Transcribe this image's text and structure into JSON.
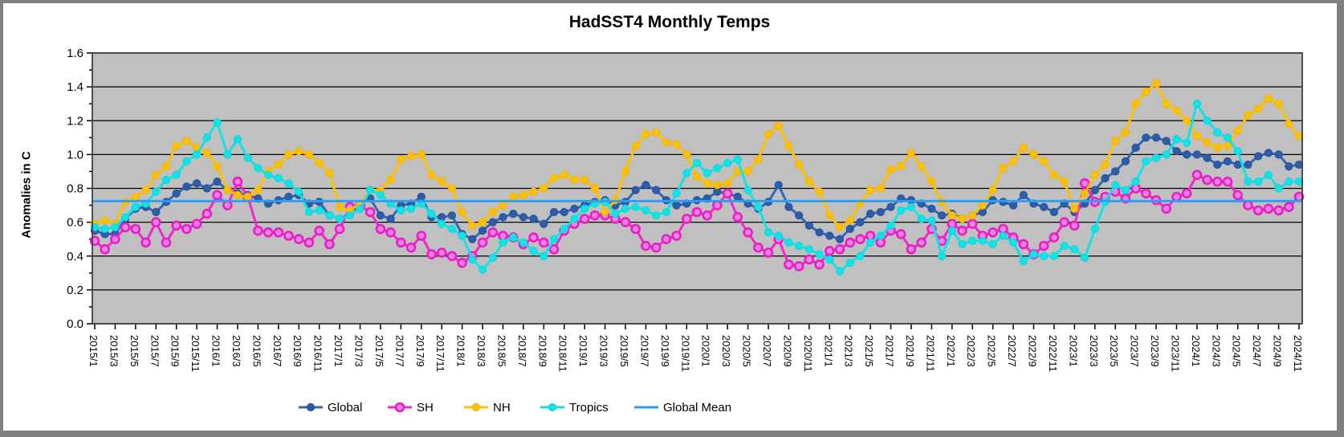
{
  "window_title": "HadSST4 Monthly Temps",
  "chart_data": {
    "type": "line",
    "title": "HadSST4 Monthly Temps",
    "xlabel": "",
    "ylabel": "Anomalies in C",
    "ylim": [
      0.0,
      1.6
    ],
    "ytick_step": 0.2,
    "ytick_labels": [
      "0.0",
      "0.2",
      "0.4",
      "0.6",
      "0.8",
      "1.0",
      "1.2",
      "1.4",
      "1.6"
    ],
    "grid": "horizontal",
    "plot_bg_color": "#c0c0c0",
    "legend_position": "bottom",
    "x_tick_every": 2,
    "months": [
      "2015/1",
      "2015/2",
      "2015/3",
      "2015/4",
      "2015/5",
      "2015/6",
      "2015/7",
      "2015/8",
      "2015/9",
      "2015/10",
      "2015/11",
      "2015/12",
      "2016/1",
      "2016/2",
      "2016/3",
      "2016/4",
      "2016/5",
      "2016/6",
      "2016/7",
      "2016/8",
      "2016/9",
      "2016/10",
      "2016/11",
      "2016/12",
      "2017/1",
      "2017/2",
      "2017/3",
      "2017/4",
      "2017/5",
      "2017/6",
      "2017/7",
      "2017/8",
      "2017/9",
      "2017/10",
      "2017/11",
      "2017/12",
      "2018/1",
      "2018/2",
      "2018/3",
      "2018/4",
      "2018/5",
      "2018/6",
      "2018/7",
      "2018/8",
      "2018/9",
      "2018/10",
      "2018/11",
      "2018/12",
      "2019/1",
      "2019/2",
      "2019/3",
      "2019/4",
      "2019/5",
      "2019/6",
      "2019/7",
      "2019/8",
      "2019/9",
      "2019/10",
      "2019/11",
      "2019/12",
      "2020/1",
      "2020/2",
      "2020/3",
      "2020/4",
      "2020/5",
      "2020/6",
      "2020/7",
      "2020/8",
      "2020/9",
      "2020/10",
      "2020/11",
      "2020/12",
      "2021/1",
      "2021/2",
      "2021/3",
      "2021/4",
      "2021/5",
      "2021/6",
      "2021/7",
      "2021/8",
      "2021/9",
      "2021/10",
      "2021/11",
      "2021/12",
      "2022/1",
      "2022/2",
      "2022/3",
      "2022/4",
      "2022/5",
      "2022/6",
      "2022/7",
      "2022/8",
      "2022/9",
      "2022/10",
      "2022/11",
      "2022/12",
      "2023/1",
      "2023/2",
      "2023/3",
      "2023/4",
      "2023/5",
      "2023/6",
      "2023/7",
      "2023/8",
      "2023/9",
      "2023/10",
      "2023/11",
      "2023/12",
      "2024/1",
      "2024/2",
      "2024/3",
      "2024/4",
      "2024/5",
      "2024/6",
      "2024/7",
      "2024/8",
      "2024/9",
      "2024/10",
      "2024/11"
    ],
    "series": [
      {
        "name": "Global",
        "color": "#3567b3",
        "marker_fill": "#2d5da9",
        "marker_stroke": "#24509a",
        "marker": "circle",
        "values": [
          0.55,
          0.53,
          0.53,
          0.62,
          0.68,
          0.69,
          0.66,
          0.72,
          0.77,
          0.81,
          0.83,
          0.8,
          0.84,
          0.79,
          0.77,
          0.76,
          0.74,
          0.71,
          0.73,
          0.75,
          0.76,
          0.71,
          0.72,
          0.64,
          0.62,
          0.65,
          0.71,
          0.74,
          0.64,
          0.62,
          0.7,
          0.71,
          0.75,
          0.63,
          0.63,
          0.64,
          0.53,
          0.5,
          0.55,
          0.6,
          0.63,
          0.65,
          0.63,
          0.62,
          0.59,
          0.66,
          0.66,
          0.68,
          0.7,
          0.72,
          0.73,
          0.7,
          0.72,
          0.79,
          0.82,
          0.79,
          0.73,
          0.7,
          0.71,
          0.73,
          0.74,
          0.78,
          0.77,
          0.75,
          0.71,
          0.68,
          0.72,
          0.82,
          0.69,
          0.64,
          0.58,
          0.54,
          0.52,
          0.5,
          0.56,
          0.6,
          0.65,
          0.66,
          0.69,
          0.74,
          0.73,
          0.71,
          0.68,
          0.64,
          0.65,
          0.62,
          0.64,
          0.66,
          0.73,
          0.72,
          0.7,
          0.76,
          0.71,
          0.69,
          0.66,
          0.71,
          0.66,
          0.71,
          0.79,
          0.86,
          0.9,
          0.96,
          1.04,
          1.1,
          1.1,
          1.08,
          1.02,
          1.0,
          1.0,
          0.98,
          0.94,
          0.96,
          0.94,
          0.94,
          0.99,
          1.01,
          1.0,
          0.93,
          0.94
        ]
      },
      {
        "name": "SH",
        "color": "#f127cc",
        "marker_fill": "#f67fe2",
        "marker_stroke": "#e51fc3",
        "marker": "open-circle",
        "values": [
          0.49,
          0.44,
          0.5,
          0.57,
          0.56,
          0.48,
          0.6,
          0.48,
          0.58,
          0.56,
          0.59,
          0.65,
          0.76,
          0.7,
          0.84,
          0.75,
          0.55,
          0.54,
          0.54,
          0.52,
          0.5,
          0.48,
          0.55,
          0.47,
          0.56,
          0.69,
          0.7,
          0.66,
          0.56,
          0.54,
          0.48,
          0.45,
          0.52,
          0.41,
          0.42,
          0.4,
          0.36,
          0.4,
          0.48,
          0.54,
          0.52,
          0.51,
          0.47,
          0.51,
          0.48,
          0.44,
          0.55,
          0.59,
          0.62,
          0.64,
          0.64,
          0.62,
          0.6,
          0.56,
          0.46,
          0.45,
          0.5,
          0.52,
          0.62,
          0.66,
          0.64,
          0.7,
          0.77,
          0.63,
          0.54,
          0.45,
          0.42,
          0.5,
          0.35,
          0.34,
          0.38,
          0.35,
          0.43,
          0.44,
          0.48,
          0.5,
          0.52,
          0.48,
          0.55,
          0.53,
          0.44,
          0.48,
          0.56,
          0.49,
          0.59,
          0.55,
          0.59,
          0.52,
          0.54,
          0.56,
          0.51,
          0.47,
          0.41,
          0.46,
          0.51,
          0.6,
          0.58,
          0.83,
          0.72,
          0.75,
          0.78,
          0.74,
          0.8,
          0.77,
          0.73,
          0.68,
          0.75,
          0.77,
          0.88,
          0.85,
          0.84,
          0.84,
          0.76,
          0.7,
          0.67,
          0.68,
          0.67,
          0.69,
          0.75
        ]
      },
      {
        "name": "NH",
        "color": "#ffc000",
        "marker_fill": "#ffc000",
        "marker_stroke": "#f0b400",
        "marker": "circle",
        "values": [
          0.59,
          0.61,
          0.59,
          0.72,
          0.75,
          0.79,
          0.88,
          0.93,
          1.05,
          1.08,
          1.04,
          1.01,
          0.93,
          0.79,
          0.76,
          0.75,
          0.79,
          0.9,
          0.94,
          1.0,
          1.02,
          1.0,
          0.95,
          0.89,
          0.69,
          0.67,
          0.71,
          0.79,
          0.79,
          0.85,
          0.97,
          0.99,
          1.0,
          0.88,
          0.84,
          0.8,
          0.66,
          0.58,
          0.6,
          0.66,
          0.7,
          0.75,
          0.76,
          0.78,
          0.8,
          0.86,
          0.88,
          0.85,
          0.85,
          0.8,
          0.66,
          0.73,
          0.9,
          1.05,
          1.12,
          1.13,
          1.07,
          1.06,
          1.0,
          0.87,
          0.83,
          0.82,
          0.83,
          0.9,
          0.9,
          0.97,
          1.12,
          1.17,
          1.05,
          0.94,
          0.84,
          0.78,
          0.64,
          0.57,
          0.61,
          0.71,
          0.79,
          0.8,
          0.91,
          0.93,
          1.01,
          0.93,
          0.84,
          0.72,
          0.64,
          0.62,
          0.64,
          0.7,
          0.79,
          0.92,
          0.96,
          1.04,
          1.0,
          0.96,
          0.88,
          0.84,
          0.68,
          0.77,
          0.88,
          0.94,
          1.08,
          1.13,
          1.3,
          1.37,
          1.42,
          1.3,
          1.26,
          1.2,
          1.11,
          1.07,
          1.04,
          1.05,
          1.14,
          1.23,
          1.27,
          1.33,
          1.3,
          1.18,
          1.11
        ]
      },
      {
        "name": "Tropics",
        "color": "#10e3e8",
        "marker_fill": "#10e3e8",
        "marker_stroke": "#0cd6dc",
        "marker": "circle",
        "values": [
          0.57,
          0.56,
          0.57,
          0.63,
          0.69,
          0.71,
          0.78,
          0.85,
          0.88,
          0.96,
          1.0,
          1.1,
          1.19,
          1.0,
          1.09,
          0.98,
          0.92,
          0.88,
          0.86,
          0.83,
          0.78,
          0.66,
          0.67,
          0.64,
          0.62,
          0.64,
          0.68,
          0.79,
          0.76,
          0.71,
          0.67,
          0.68,
          0.71,
          0.65,
          0.59,
          0.56,
          0.52,
          0.38,
          0.32,
          0.39,
          0.48,
          0.51,
          0.48,
          0.43,
          0.4,
          0.5,
          0.56,
          0.62,
          0.68,
          0.71,
          0.72,
          0.65,
          0.68,
          0.69,
          0.67,
          0.64,
          0.66,
          0.77,
          0.89,
          0.95,
          0.89,
          0.92,
          0.95,
          0.97,
          0.79,
          0.69,
          0.54,
          0.52,
          0.48,
          0.46,
          0.44,
          0.41,
          0.38,
          0.31,
          0.36,
          0.4,
          0.48,
          0.52,
          0.58,
          0.67,
          0.69,
          0.62,
          0.61,
          0.4,
          0.55,
          0.47,
          0.49,
          0.49,
          0.47,
          0.52,
          0.48,
          0.37,
          0.41,
          0.4,
          0.4,
          0.46,
          0.44,
          0.39,
          0.56,
          0.72,
          0.82,
          0.79,
          0.84,
          0.96,
          0.98,
          1.0,
          1.09,
          1.07,
          1.3,
          1.2,
          1.13,
          1.1,
          1.02,
          0.84,
          0.84,
          0.88,
          0.8,
          0.84,
          0.84
        ]
      }
    ],
    "global_mean": {
      "name": "Global Mean",
      "value": 0.725,
      "color": "#2d9df4"
    }
  }
}
